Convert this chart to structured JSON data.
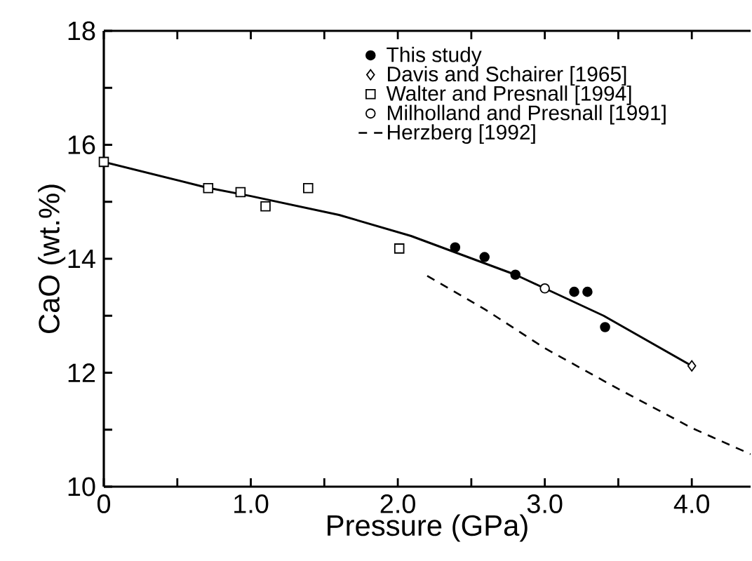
{
  "chart_data": {
    "type": "scatter",
    "xlabel": "Pressure (GPa)",
    "ylabel": "CaO (wt.%)",
    "xlim": [
      0,
      4.4
    ],
    "ylim": [
      10,
      18
    ],
    "xticks": [
      0,
      {
        "value": 1,
        "label": "1.0"
      },
      {
        "value": 2,
        "label": "2.0"
      },
      {
        "value": 3,
        "label": "3.0"
      },
      {
        "value": 4,
        "label": "4.0"
      }
    ],
    "yticks": [
      10,
      12,
      14,
      16,
      18
    ],
    "legend": "top right",
    "grid": false,
    "series": [
      {
        "name": "This study",
        "marker": "circle",
        "color": "#000000",
        "x": [
          2.39,
          2.59,
          2.8,
          3.2,
          3.29,
          3.41
        ],
        "values": [
          14.2,
          14.03,
          13.72,
          13.42,
          13.42,
          12.8
        ]
      },
      {
        "name": "Davis and Schairer [1965]",
        "marker": "diamond",
        "color": "#ffffff",
        "x": [
          4.0
        ],
        "values": [
          12.12
        ]
      },
      {
        "name": "Walter and Presnall [1994]",
        "marker": "square",
        "color": "#ffffff",
        "x": [
          0,
          0.71,
          0.93,
          1.1,
          1.39,
          2.01
        ],
        "values": [
          15.7,
          15.24,
          15.17,
          14.92,
          15.24,
          14.18
        ]
      },
      {
        "name": "Milholland and Presnall [1991]",
        "marker": "circle",
        "color": "#ffffff",
        "x": [
          3.0
        ],
        "values": [
          13.48
        ]
      },
      {
        "name": "Herzberg [1992]",
        "type": "line",
        "line_style": "dashed",
        "color": "#000000",
        "x": [
          2.2,
          2.6,
          3.0,
          3.49,
          4.0,
          4.4
        ],
        "values": [
          13.7,
          13.1,
          12.43,
          11.73,
          11.03,
          10.57
        ]
      },
      {
        "type": "line",
        "line_style": "solid",
        "color": "#000000",
        "x": [
          0,
          0.7,
          1.0,
          1.6,
          2.09,
          2.8,
          3.0,
          3.4,
          4.0
        ],
        "values": [
          15.7,
          15.25,
          15.1,
          14.77,
          14.4,
          13.72,
          13.48,
          13.0,
          12.12
        ]
      }
    ]
  }
}
